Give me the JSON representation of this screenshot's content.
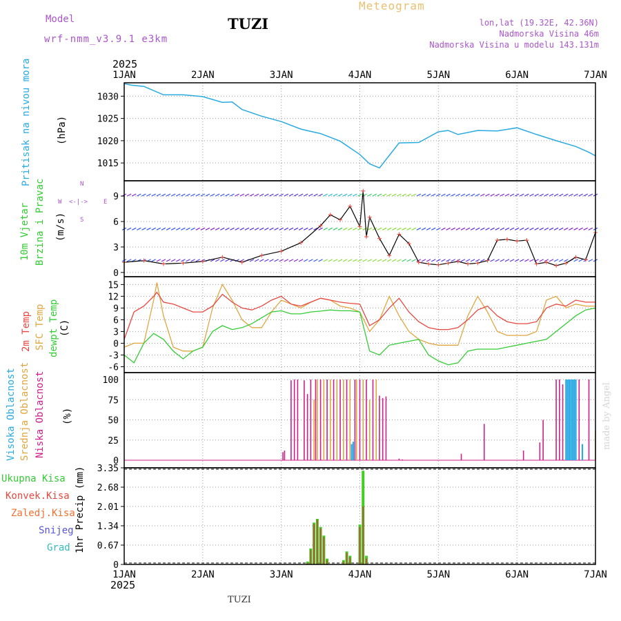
{
  "header": {
    "model_label": "Model",
    "model_name": "wrf-nmm_v3.9.1 e3km",
    "station": "TUZI",
    "chart_title": "Meteogram",
    "lonlat": "lon,lat (19.32E, 42.36N)",
    "altitude": "Nadmorska Visina 46m",
    "model_altitude": "Nadmorska Visina u modelu 143.131m",
    "footer_station": "TUZI",
    "credit": "made by Angel"
  },
  "colors": {
    "pressure": "#29aae2",
    "t2m": "#e8473f",
    "sfc": "#e0a640",
    "dew": "#33cc33",
    "high": "#29aae2",
    "mid": "#e0a640",
    "low": "#cc1f8a",
    "total": "#44cc22",
    "conv": "#e8473f",
    "grad": "#33bbbb",
    "snow": "#5555dd"
  },
  "chart_data": {
    "type": "meteogram",
    "year": "2025",
    "x_ticks": [
      "1JAN",
      "2JAN",
      "3JAN",
      "4JAN",
      "5JAN",
      "6JAN",
      "7JAN"
    ],
    "x_range_hours": [
      0,
      144
    ],
    "pressure": {
      "ylabel": "Pritisak na nivou mora",
      "unit": "(hPa)",
      "yticks": [
        "1030",
        "1025",
        "1020",
        "1015"
      ],
      "ylim": [
        1011,
        1033
      ],
      "x": [
        0,
        2,
        6,
        12,
        18,
        24,
        30,
        33,
        36,
        42,
        48,
        54,
        60,
        66,
        72,
        75,
        78,
        84,
        90,
        96,
        99,
        102,
        108,
        114,
        120,
        126,
        132,
        138,
        142,
        144
      ],
      "values": [
        1032.8,
        1032.5,
        1032.2,
        1030.3,
        1030.3,
        1029.9,
        1028.6,
        1028.7,
        1027.0,
        1025.5,
        1024.3,
        1022.6,
        1021.6,
        1019.9,
        1016.9,
        1014.8,
        1013.9,
        1019.5,
        1019.6,
        1022.0,
        1022.3,
        1021.4,
        1022.3,
        1022.2,
        1022.9,
        1021.4,
        1020.0,
        1018.7,
        1017.4,
        1016.6
      ]
    },
    "wind": {
      "ylabel1": "10m Vjetar",
      "ylabel2": "Brzina i Pravac",
      "unit": "(m/s)",
      "compass_north": "N",
      "compass_east": "E",
      "compass_south": "S",
      "compass_west": "W",
      "compass_glyph": "<-|->",
      "yticks": [
        "9",
        "6",
        "3",
        "0"
      ],
      "ylim": [
        -0.5,
        10.8
      ],
      "x": [
        0,
        6,
        12,
        18,
        24,
        30,
        36,
        42,
        48,
        54,
        60,
        63,
        66,
        69,
        72,
        73,
        74,
        75,
        78,
        81,
        84,
        87,
        90,
        93,
        96,
        99,
        102,
        105,
        108,
        111,
        114,
        117,
        120,
        123,
        126,
        129,
        132,
        135,
        138,
        141,
        144
      ],
      "speed": [
        1.2,
        1.4,
        1.0,
        1.1,
        1.3,
        1.8,
        1.2,
        2.0,
        2.5,
        3.5,
        5.5,
        6.8,
        6.2,
        7.8,
        5.4,
        9.6,
        4.2,
        6.5,
        4.0,
        2.0,
        4.5,
        3.4,
        1.2,
        1.0,
        0.9,
        1.1,
        1.3,
        1.0,
        1.1,
        1.4,
        3.8,
        3.9,
        3.7,
        3.8,
        1.0,
        1.2,
        0.8,
        1.1,
        1.8,
        1.5,
        4.7
      ],
      "barb_rows": [
        9,
        5,
        1.3
      ]
    },
    "temperature": {
      "ylabel1": "2m Temp",
      "ylabel2": "SFC Temp",
      "ylabel3": "dewpt Temp",
      "unit": "(C)",
      "yticks": [
        "15",
        "12",
        "9",
        "6",
        "3",
        "0",
        "-3",
        "-6"
      ],
      "ylim": [
        -7.5,
        17
      ],
      "x": [
        0,
        3,
        6,
        9,
        10,
        12,
        15,
        18,
        21,
        24,
        27,
        30,
        33,
        36,
        39,
        42,
        45,
        48,
        51,
        54,
        57,
        60,
        63,
        66,
        69,
        72,
        75,
        78,
        81,
        84,
        87,
        90,
        93,
        96,
        99,
        102,
        105,
        108,
        111,
        114,
        117,
        120,
        123,
        126,
        129,
        132,
        135,
        138,
        141,
        144
      ],
      "t2m": [
        1,
        8,
        9.5,
        12,
        13,
        10.5,
        10,
        9,
        8,
        8,
        9.5,
        12.5,
        10.5,
        9,
        8.5,
        9.5,
        11,
        12,
        10,
        9.5,
        10.5,
        11.5,
        11,
        10.5,
        10.2,
        10,
        4.5,
        6,
        9,
        11.5,
        8,
        5.5,
        4,
        3.5,
        3.5,
        4,
        6,
        8.5,
        9.5,
        7,
        5.5,
        5,
        5,
        5.5,
        9,
        10,
        9.5,
        11,
        10.5,
        10.5
      ],
      "sfc": [
        -1,
        0,
        0,
        11,
        15.5,
        7,
        -1,
        -2,
        -2,
        -1,
        9,
        15,
        11,
        6,
        4,
        4,
        8,
        11,
        10,
        9,
        10.5,
        11.5,
        11,
        9.5,
        9,
        8,
        3,
        6,
        12,
        7,
        3,
        1,
        0,
        -0.5,
        -0.5,
        -0.5,
        7,
        12,
        8,
        3,
        2,
        2,
        2,
        3,
        11,
        12,
        9,
        10,
        9.5,
        9.5
      ],
      "dew": [
        -3,
        -5,
        0,
        2.5,
        2,
        1,
        -2,
        -4,
        -2,
        -1,
        3,
        4.5,
        3.5,
        4,
        5,
        6.5,
        8,
        8.3,
        7.5,
        7.5,
        8,
        8.2,
        8.5,
        8.3,
        8.3,
        8,
        -2,
        -3,
        -0.5,
        0,
        0.5,
        1,
        -3,
        -4.5,
        -5.5,
        -5,
        -2,
        -1.5,
        -1.5,
        -1.5,
        -1,
        -0.5,
        0,
        0.5,
        1,
        3,
        5,
        7,
        8.5,
        9
      ]
    },
    "clouds": {
      "ylabel1": "Visoka Oblacnost",
      "ylabel2": "Srednja Oblacnost",
      "ylabel3": "Niska Oblacnost",
      "unit": "(%)",
      "yticks": [
        "100",
        "75",
        "50",
        "25",
        "0"
      ],
      "ylim": [
        0,
        100
      ],
      "bars": [
        {
          "t": 48.5,
          "layer": "low",
          "v": 10
        },
        {
          "t": 49,
          "layer": "low",
          "v": 12
        },
        {
          "t": 51,
          "layer": "low",
          "v": 99
        },
        {
          "t": 52,
          "layer": "low",
          "v": 100
        },
        {
          "t": 53,
          "layer": "low",
          "v": 100
        },
        {
          "t": 55,
          "layer": "low",
          "v": 99
        },
        {
          "t": 56,
          "layer": "low",
          "v": 82
        },
        {
          "t": 57,
          "layer": "low",
          "v": 100
        },
        {
          "t": 58,
          "layer": "mid",
          "v": 75
        },
        {
          "t": 58.5,
          "layer": "low",
          "v": 100
        },
        {
          "t": 59,
          "layer": "mid",
          "v": 100
        },
        {
          "t": 60,
          "layer": "low",
          "v": 100
        },
        {
          "t": 61,
          "layer": "mid",
          "v": 100
        },
        {
          "t": 62,
          "layer": "low",
          "v": 100
        },
        {
          "t": 63,
          "layer": "mid",
          "v": 100
        },
        {
          "t": 64,
          "layer": "low",
          "v": 100
        },
        {
          "t": 65,
          "layer": "mid",
          "v": 100
        },
        {
          "t": 66,
          "layer": "low",
          "v": 100
        },
        {
          "t": 67,
          "layer": "mid",
          "v": 100
        },
        {
          "t": 68,
          "layer": "low",
          "v": 100
        },
        {
          "t": 69,
          "layer": "mid",
          "v": 100
        },
        {
          "t": 69.5,
          "layer": "high",
          "v": 20
        },
        {
          "t": 70,
          "layer": "high",
          "v": 23
        },
        {
          "t": 70.5,
          "layer": "low",
          "v": 100
        },
        {
          "t": 71,
          "layer": "mid",
          "v": 100
        },
        {
          "t": 72,
          "layer": "low",
          "v": 100
        },
        {
          "t": 73,
          "layer": "mid",
          "v": 100
        },
        {
          "t": 74,
          "layer": "low",
          "v": 100
        },
        {
          "t": 75,
          "layer": "mid",
          "v": 75
        },
        {
          "t": 76,
          "layer": "low",
          "v": 100
        },
        {
          "t": 77,
          "layer": "mid",
          "v": 100
        },
        {
          "t": 78,
          "layer": "low",
          "v": 80
        },
        {
          "t": 79,
          "layer": "low",
          "v": 77
        },
        {
          "t": 80,
          "layer": "low",
          "v": 79
        },
        {
          "t": 84,
          "layer": "low",
          "v": 2
        },
        {
          "t": 85,
          "layer": "low",
          "v": 1
        },
        {
          "t": 103,
          "layer": "low",
          "v": 8
        },
        {
          "t": 110,
          "layer": "low",
          "v": 45
        },
        {
          "t": 122,
          "layer": "low",
          "v": 12
        },
        {
          "t": 127,
          "layer": "low",
          "v": 22
        },
        {
          "t": 128,
          "layer": "low",
          "v": 50
        },
        {
          "t": 132,
          "layer": "low",
          "v": 100
        },
        {
          "t": 133,
          "layer": "low",
          "v": 100
        },
        {
          "t": 134,
          "layer": "low",
          "v": 94
        },
        {
          "t": 135,
          "layer": "high",
          "v": 100
        },
        {
          "t": 135.5,
          "layer": "high",
          "v": 100
        },
        {
          "t": 136,
          "layer": "high",
          "v": 100
        },
        {
          "t": 136.5,
          "layer": "high",
          "v": 100
        },
        {
          "t": 137,
          "layer": "high",
          "v": 100
        },
        {
          "t": 137.5,
          "layer": "high",
          "v": 100
        },
        {
          "t": 138,
          "layer": "high",
          "v": 100
        },
        {
          "t": 139,
          "layer": "low",
          "v": 100
        },
        {
          "t": 140,
          "layer": "high",
          "v": 20
        },
        {
          "t": 142,
          "layer": "low",
          "v": 100
        },
        {
          "t": 144,
          "layer": "mid",
          "v": 37
        }
      ]
    },
    "precip": {
      "ylabel": "1hr Precip (mm)",
      "legend": [
        "Ukupna Kisa",
        "Konvek.Kisa",
        "Zaledj.Kisa",
        "Snijeg",
        "Grad"
      ],
      "yticks": [
        "3.35",
        "2.68",
        "2.01",
        "1.34",
        "0.67",
        "0"
      ],
      "ylim": [
        0,
        3.35
      ],
      "bars": [
        {
          "t": 56,
          "total": 0.1,
          "conv": 0.05
        },
        {
          "t": 57,
          "total": 0.55,
          "conv": 0.5
        },
        {
          "t": 58,
          "total": 1.45,
          "conv": 1.4
        },
        {
          "t": 59,
          "total": 1.58,
          "conv": 1.55
        },
        {
          "t": 60,
          "total": 1.3,
          "conv": 1.25
        },
        {
          "t": 61,
          "total": 1.0,
          "conv": 0.95
        },
        {
          "t": 62,
          "total": 0.2,
          "conv": 0.15
        },
        {
          "t": 67,
          "total": 0.15,
          "conv": 0.1
        },
        {
          "t": 68,
          "total": 0.45,
          "conv": 0.4
        },
        {
          "t": 69,
          "total": 0.3,
          "conv": 0.25
        },
        {
          "t": 72,
          "total": 1.38,
          "conv": 1.3
        },
        {
          "t": 73,
          "total": 3.25,
          "conv": 2.01
        },
        {
          "t": 74,
          "total": 0.3,
          "conv": 0.2
        }
      ]
    }
  }
}
